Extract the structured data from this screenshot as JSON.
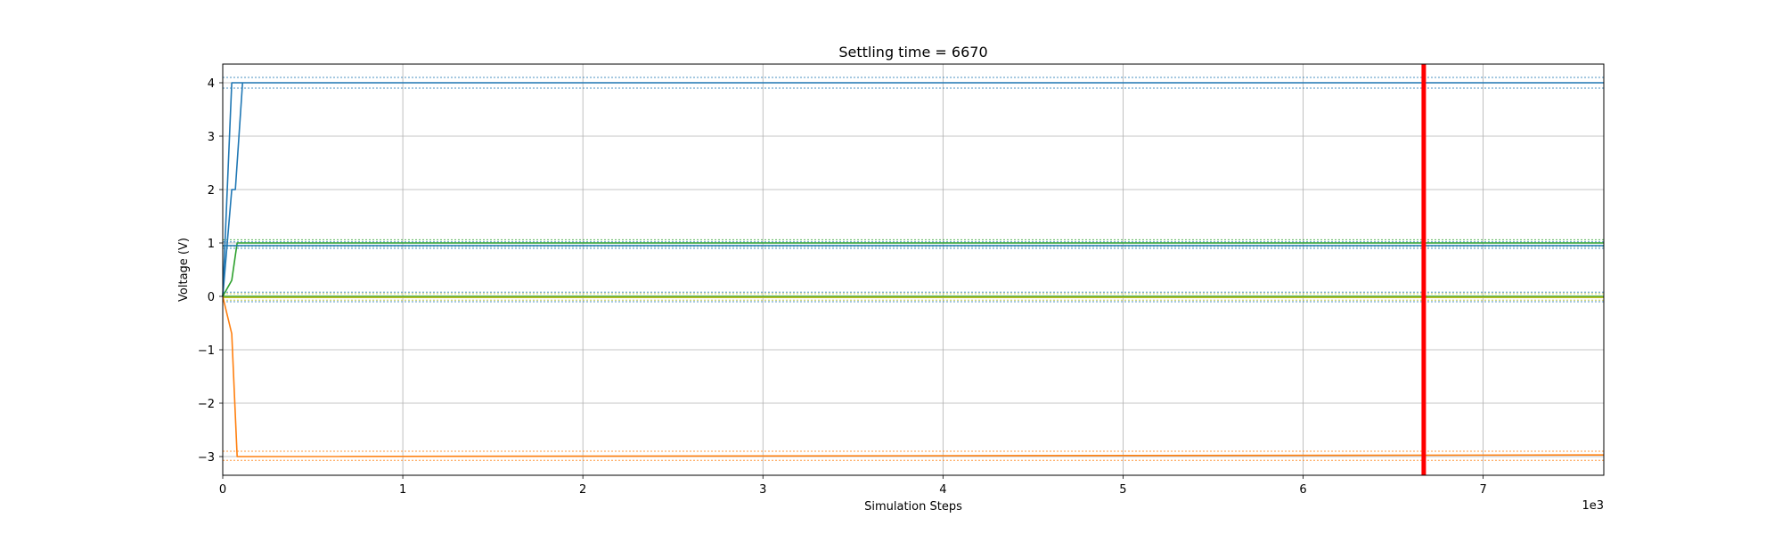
{
  "chart_data": {
    "type": "line",
    "title": "Settling time = 6670",
    "xlabel": "Simulation Steps",
    "ylabel": "Voltage (V)",
    "x_offset_label": "1e3",
    "xlim": [
      0,
      7.67
    ],
    "ylim": [
      -3.35,
      4.35
    ],
    "x_ticks": [
      0,
      1,
      2,
      3,
      4,
      5,
      6,
      7
    ],
    "x_tick_labels": [
      "0",
      "1",
      "2",
      "3",
      "4",
      "5",
      "6",
      "7"
    ],
    "y_ticks": [
      -3,
      -2,
      -1,
      0,
      1,
      2,
      3,
      4
    ],
    "y_tick_labels": [
      "−3",
      "−2",
      "−1",
      "0",
      "1",
      "2",
      "3",
      "4"
    ],
    "grid": true,
    "settling_marker": {
      "x": 6.67,
      "color": "#ff0000"
    },
    "series": [
      {
        "color": "#1f77b4",
        "points": [
          [
            0,
            0
          ],
          [
            0.05,
            4.0
          ],
          [
            0.07,
            4.0
          ],
          [
            7.67,
            4.0
          ]
        ]
      },
      {
        "color": "#1f77b4",
        "points": [
          [
            0,
            0
          ],
          [
            0.05,
            2.0
          ],
          [
            0.07,
            2.0
          ],
          [
            0.1,
            3.5
          ],
          [
            0.11,
            4.0
          ]
        ]
      },
      {
        "color": "#2ca02c",
        "points": [
          [
            0,
            0
          ],
          [
            0.05,
            0.3
          ],
          [
            0.08,
            1.0
          ],
          [
            7.67,
            1.0
          ]
        ]
      },
      {
        "color": "#1f77b4",
        "points": [
          [
            0,
            0.95
          ],
          [
            7.67,
            0.95
          ]
        ]
      },
      {
        "color": "#2ca02c",
        "points": [
          [
            0,
            0
          ],
          [
            7.67,
            0.0
          ]
        ]
      },
      {
        "color": "#bcbd22",
        "points": [
          [
            0,
            -0.02
          ],
          [
            7.67,
            -0.02
          ]
        ]
      },
      {
        "color": "#ff7f0e",
        "points": [
          [
            0,
            0
          ],
          [
            0.05,
            -0.7
          ],
          [
            0.08,
            -3.0
          ],
          [
            7.67,
            -2.97
          ]
        ]
      }
    ],
    "tolerance_bands": [
      {
        "color": "#1f77b4",
        "values": [
          4.1,
          3.9
        ]
      },
      {
        "color": "#2ca02c",
        "values": [
          1.06,
          0.94
        ]
      },
      {
        "color": "#1f77b4",
        "values": [
          1.02,
          0.9
        ]
      },
      {
        "color": "#1f77b4",
        "values": [
          0.08,
          -0.1
        ]
      },
      {
        "color": "#bcbd22",
        "values": [
          0.05,
          -0.07
        ]
      },
      {
        "color": "#ff7f0e",
        "values": [
          -2.9,
          -3.07
        ]
      }
    ]
  }
}
